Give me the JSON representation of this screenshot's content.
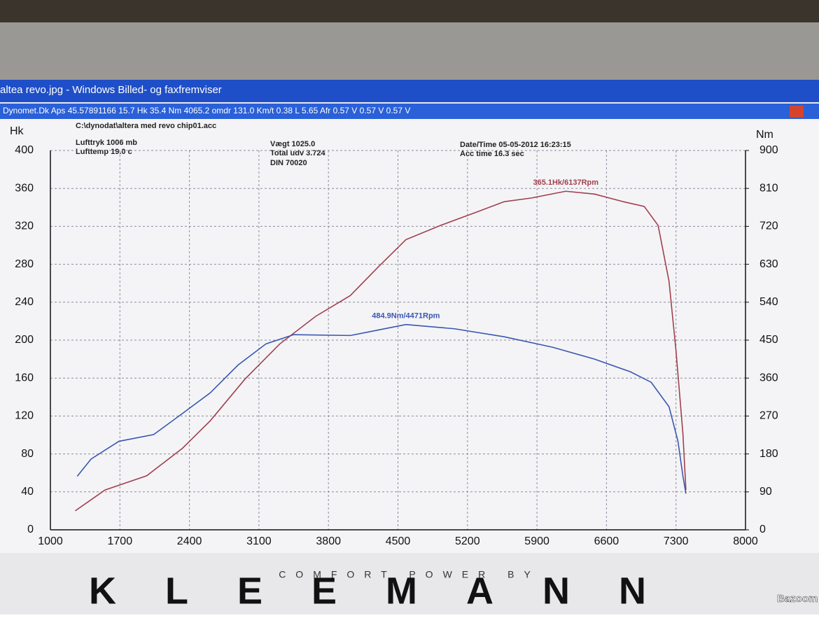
{
  "window": {
    "title": "altea revo.jpg - Windows Billed- og faxfremviser"
  },
  "app": {
    "title": "Dynomet.Dk Aps  45.57891166  15.7 Hk  35.4 Nm 4065.2 omdr 131.0 Km/t  0.38 L 5.65 Afr  0.57 V  0.57 V  0.57 V"
  },
  "info": {
    "file": "C:\\dynodat\\altera med revo chip01.acc",
    "pressure": "Lufttryk  1006 mb",
    "temp": "Lufttemp  19.0 c",
    "weight": "Vægt    1025.0",
    "total": "Total udv 3.724",
    "din": "DIN 70020",
    "date": "Date/Time  05-05-2012 16:23:15",
    "acc": "Acc time   16.3 sec"
  },
  "chart_data": {
    "type": "line",
    "y_label": "Hk",
    "y2_label": "Nm",
    "xlim": [
      1000,
      8000
    ],
    "xticks": [
      1000,
      1700,
      2400,
      3100,
      3800,
      4500,
      5200,
      5900,
      6600,
      7300,
      8000
    ],
    "ylim": [
      0,
      400
    ],
    "yticks": [
      0,
      40,
      80,
      120,
      160,
      200,
      240,
      280,
      320,
      360,
      400
    ],
    "y2lim": [
      0,
      900
    ],
    "y2ticks": [
      0,
      90,
      180,
      270,
      360,
      450,
      540,
      630,
      720,
      810,
      900
    ],
    "grid": true,
    "annotations": [
      "365.1Hk/6137Rpm",
      "484.9Nm/4471Rpm"
    ],
    "series": [
      {
        "name": "Hk",
        "color": "#a0404e",
        "x": [
          1250,
          1550,
          1970,
          2330,
          2610,
          2960,
          3310,
          3670,
          4020,
          4300,
          4580,
          4930,
          5290,
          5570,
          5850,
          6190,
          6480,
          6770,
          6980,
          7120,
          7230,
          7300,
          7370,
          7400
        ],
        "values": [
          20,
          42,
          57,
          86,
          115,
          159,
          196,
          225,
          247,
          277,
          306,
          321,
          335,
          346,
          350,
          357,
          354,
          346,
          341,
          321,
          262,
          189,
          101,
          42
        ]
      },
      {
        "name": "Nm",
        "color": "#3a56b0",
        "axis": "y2",
        "x": [
          1270,
          1410,
          1690,
          2040,
          2330,
          2610,
          2890,
          3170,
          3450,
          4020,
          4300,
          4580,
          5070,
          5570,
          6060,
          6480,
          6840,
          7050,
          7230,
          7320,
          7370,
          7400
        ],
        "values": [
          127,
          168,
          210,
          226,
          276,
          325,
          391,
          441,
          463,
          461,
          474,
          487,
          477,
          458,
          433,
          405,
          375,
          350,
          292,
          210,
          127,
          86
        ]
      }
    ]
  },
  "footer": {
    "tagline": "COMFORT POWER BY",
    "brand": "KLEEMANN",
    "watermark": "Bazoom"
  }
}
